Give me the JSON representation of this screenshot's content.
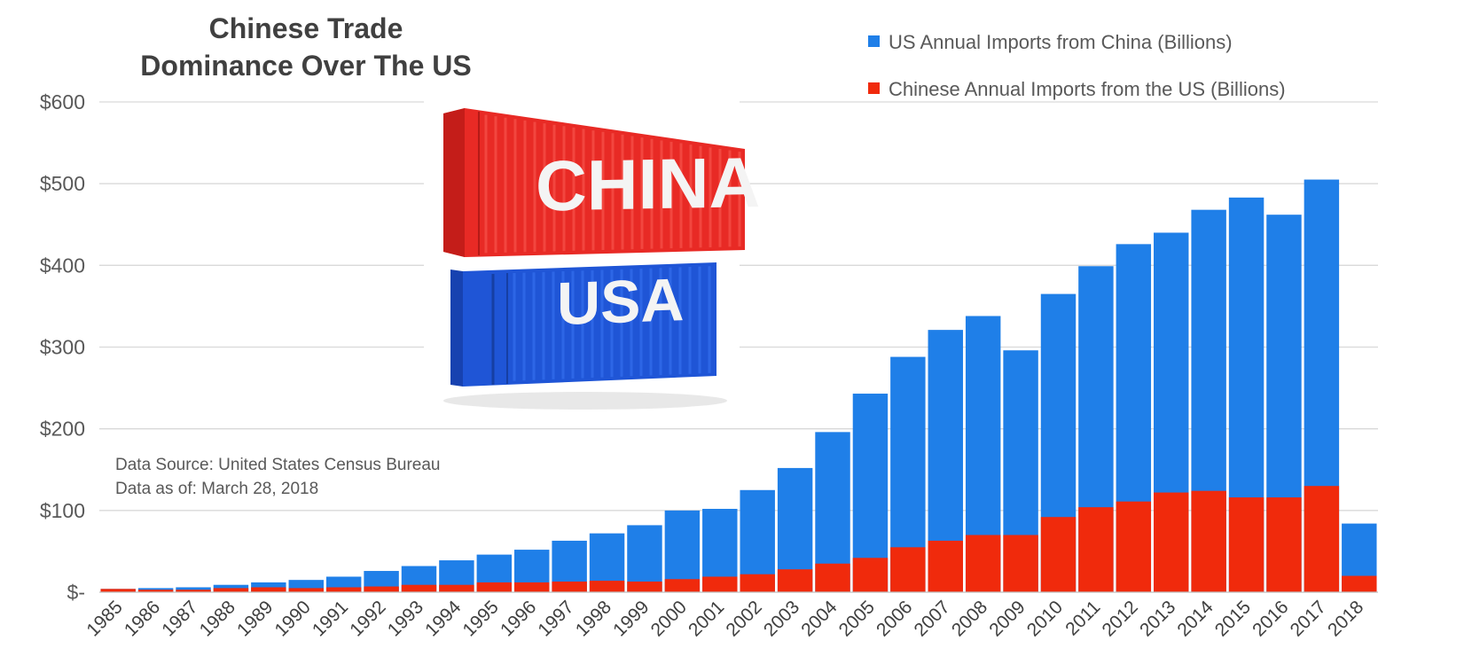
{
  "chart_data": {
    "type": "bar",
    "stacked": true,
    "title": [
      "Chinese Trade",
      "Dominance Over The US"
    ],
    "categories": [
      "1985",
      "1986",
      "1987",
      "1988",
      "1989",
      "1990",
      "1991",
      "1992",
      "1993",
      "1994",
      "1995",
      "1996",
      "1997",
      "1998",
      "1999",
      "2000",
      "2001",
      "2002",
      "2003",
      "2004",
      "2005",
      "2006",
      "2007",
      "2008",
      "2009",
      "2010",
      "2011",
      "2012",
      "2013",
      "2014",
      "2015",
      "2016",
      "2017",
      "2018"
    ],
    "series": [
      {
        "name": "US Annual Imports from China (Billions)",
        "color": "#1f7fe8",
        "values": [
          4,
          5,
          6,
          9,
          12,
          15,
          19,
          26,
          32,
          39,
          46,
          52,
          63,
          72,
          82,
          100,
          102,
          125,
          152,
          196,
          243,
          288,
          321,
          338,
          296,
          365,
          399,
          426,
          440,
          468,
          483,
          462,
          505,
          84
        ]
      },
      {
        "name": "Chinese Annual Imports from the US (Billions)",
        "color": "#f02a0c",
        "values": [
          4,
          3,
          3,
          5,
          6,
          5,
          6,
          7,
          9,
          9,
          12,
          12,
          13,
          14,
          13,
          16,
          19,
          22,
          28,
          35,
          42,
          55,
          63,
          70,
          70,
          92,
          104,
          111,
          122,
          124,
          116,
          116,
          130,
          20
        ]
      }
    ],
    "ylim": [
      0,
      600
    ],
    "yticks": [
      0,
      100,
      200,
      300,
      400,
      500,
      600
    ],
    "ytick_labels": [
      "$-",
      "$100",
      "$200",
      "$300",
      "$400",
      "$500",
      "$600"
    ],
    "grid": true,
    "legend_position": "top-right",
    "annotations": [
      "Data Source: United States Census Bureau",
      "Data as of:  March 28, 2018"
    ]
  },
  "image": {
    "top_container_label": "CHINA",
    "bottom_container_label": "USA",
    "top_color": "#e82a25",
    "bottom_color": "#1f55d6"
  }
}
